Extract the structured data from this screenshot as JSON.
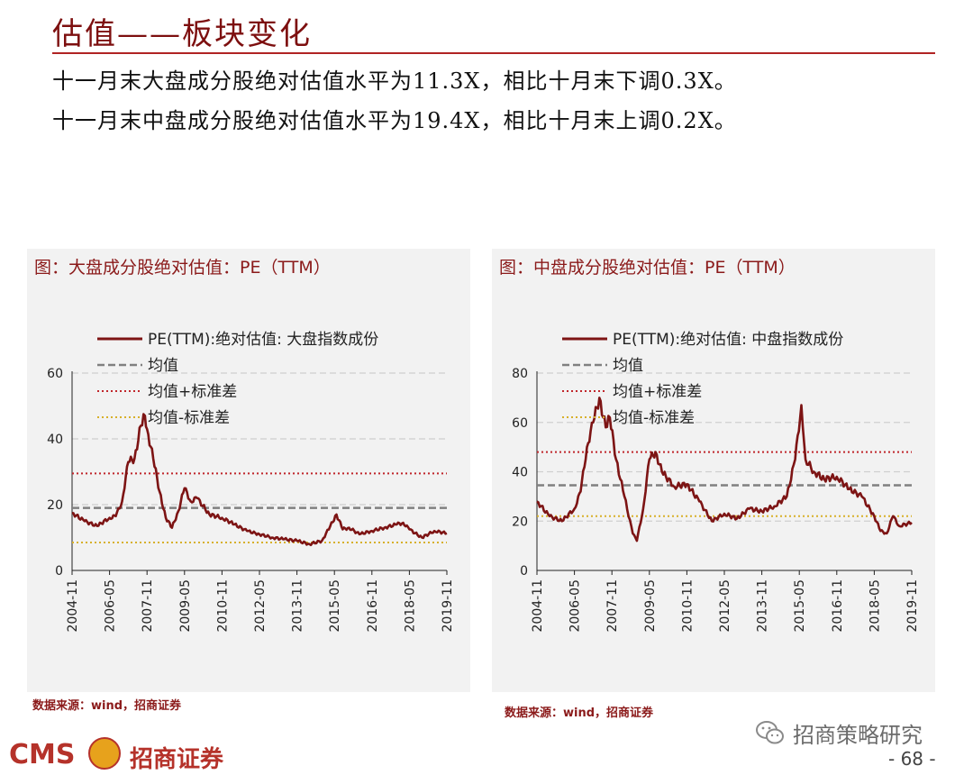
{
  "header": {
    "title": "估值——板块变化",
    "line1": "十一月末大盘成分股绝对估值水平为11.3X，相比十月末下调0.3X。",
    "line2": "十一月末中盘成分股绝对估值水平为19.4X，相比十月末上调0.2X。"
  },
  "footer": {
    "logo_text": "CMS",
    "logo_cn": "招商证券",
    "wechat_name": "招商策略研究",
    "page_number": "- 68 -"
  },
  "colors": {
    "series": "#7d1414",
    "mean": "#808080",
    "plus_sd": "#c0262b",
    "minus_sd": "#d7b02a",
    "accent": "#b02323"
  },
  "chart_data": [
    {
      "type": "line",
      "title": "图：大盘成分股绝对估值：PE（TTM）",
      "source": "数据来源：wind，招商证券",
      "x_tick_labels": [
        "2004-11",
        "2006-05",
        "2007-11",
        "2009-05",
        "2010-11",
        "2012-05",
        "2013-11",
        "2015-05",
        "2016-11",
        "2018-05",
        "2019-11"
      ],
      "ylim": [
        0,
        60
      ],
      "yticks": [
        0,
        20,
        40,
        60
      ],
      "grid": true,
      "legend_position": "top-left",
      "legend": [
        "PE(TTM):绝对估值: 大盘指数成份",
        "均值",
        "均值+标准差",
        "均值-标准差"
      ],
      "reference_lines": {
        "mean": 19.0,
        "mean_plus_sd": 29.5,
        "mean_minus_sd": 8.5
      },
      "x": [
        "2004-11",
        "2005-05",
        "2005-11",
        "2006-05",
        "2006-08",
        "2006-11",
        "2007-02",
        "2007-05",
        "2007-08",
        "2007-10",
        "2007-11",
        "2008-02",
        "2008-05",
        "2008-08",
        "2008-11",
        "2009-02",
        "2009-05",
        "2009-08",
        "2009-11",
        "2010-05",
        "2010-11",
        "2011-05",
        "2011-11",
        "2012-05",
        "2012-11",
        "2013-05",
        "2013-11",
        "2014-05",
        "2014-11",
        "2015-03",
        "2015-06",
        "2015-09",
        "2015-12",
        "2016-05",
        "2016-11",
        "2017-05",
        "2017-11",
        "2018-02",
        "2018-05",
        "2018-11",
        "2019-05",
        "2019-11"
      ],
      "values": [
        17.5,
        15.0,
        13.5,
        16.0,
        16.5,
        21.0,
        33.0,
        34.0,
        44.0,
        47.0,
        43.0,
        34.0,
        24.0,
        16.0,
        13.0,
        18.0,
        25.0,
        21.0,
        22.0,
        17.0,
        16.0,
        14.0,
        12.0,
        11.0,
        10.0,
        9.5,
        9.0,
        8.0,
        9.0,
        13.5,
        17.0,
        12.5,
        13.0,
        11.0,
        12.0,
        13.0,
        14.0,
        14.5,
        12.5,
        10.0,
        12.0,
        11.3
      ]
    },
    {
      "type": "line",
      "title": "图：中盘成分股绝对估值：PE（TTM）",
      "source": "数据来源：wind，招商证券",
      "x_tick_labels": [
        "2004-11",
        "2006-05",
        "2007-11",
        "2009-05",
        "2010-11",
        "2012-05",
        "2013-11",
        "2015-05",
        "2016-11",
        "2018-05",
        "2019-11"
      ],
      "ylim": [
        0,
        80
      ],
      "yticks": [
        0,
        20,
        40,
        60,
        80
      ],
      "grid": true,
      "legend_position": "top-left",
      "legend": [
        "PE(TTM):绝对估值: 中盘指数成份",
        "均值",
        "均值+标准差",
        "均值-标准差"
      ],
      "reference_lines": {
        "mean": 34.5,
        "mean_plus_sd": 48.0,
        "mean_minus_sd": 22.0
      },
      "x": [
        "2004-11",
        "2005-05",
        "2005-11",
        "2006-05",
        "2006-08",
        "2006-11",
        "2007-02",
        "2007-05",
        "2007-08",
        "2007-10",
        "2008-01",
        "2008-05",
        "2008-09",
        "2008-11",
        "2009-02",
        "2009-05",
        "2009-08",
        "2009-11",
        "2010-05",
        "2010-11",
        "2011-05",
        "2011-11",
        "2012-05",
        "2012-11",
        "2013-05",
        "2013-11",
        "2014-05",
        "2014-11",
        "2015-03",
        "2015-06",
        "2015-08",
        "2015-12",
        "2016-05",
        "2016-11",
        "2017-05",
        "2017-11",
        "2018-05",
        "2018-08",
        "2018-11",
        "2019-02",
        "2019-05",
        "2019-11"
      ],
      "values": [
        28.0,
        22.0,
        20.0,
        25.0,
        32.0,
        50.0,
        60.0,
        70.0,
        58.0,
        62.0,
        45.0,
        30.0,
        15.0,
        12.0,
        25.0,
        45.0,
        48.0,
        40.0,
        34.0,
        35.0,
        28.0,
        20.0,
        23.0,
        21.0,
        25.0,
        24.0,
        26.0,
        30.0,
        45.0,
        67.0,
        45.0,
        40.0,
        37.0,
        38.0,
        33.0,
        30.0,
        22.0,
        16.0,
        15.0,
        22.0,
        18.0,
        19.4
      ]
    }
  ]
}
